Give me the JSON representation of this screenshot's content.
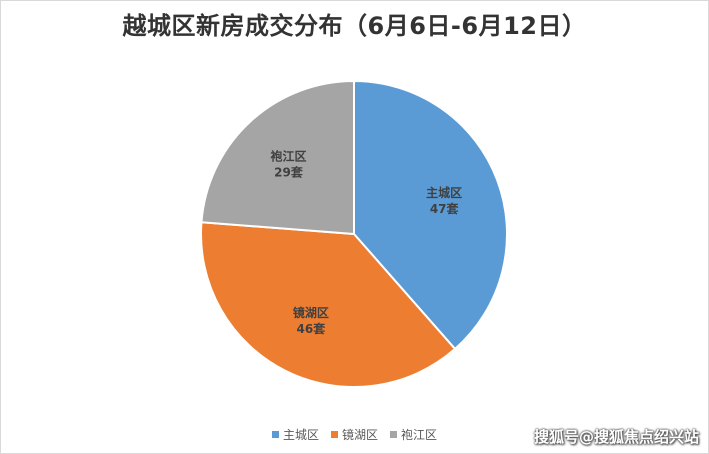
{
  "chart_data": {
    "type": "pie",
    "title": "越城区新房成交分布（6月6日-6月12日）",
    "categories": [
      "主城区",
      "镜湖区",
      "袍江区"
    ],
    "values": [
      47,
      46,
      29
    ],
    "unit": "套",
    "colors": [
      "#5b9bd5",
      "#ed7d31",
      "#a5a5a5"
    ],
    "labels": [
      "47套",
      "46套",
      "29套"
    ],
    "legend_position": "bottom",
    "start_angle": "12 o'clock, clockwise"
  },
  "watermark": "搜狐号@搜狐焦点绍兴站"
}
